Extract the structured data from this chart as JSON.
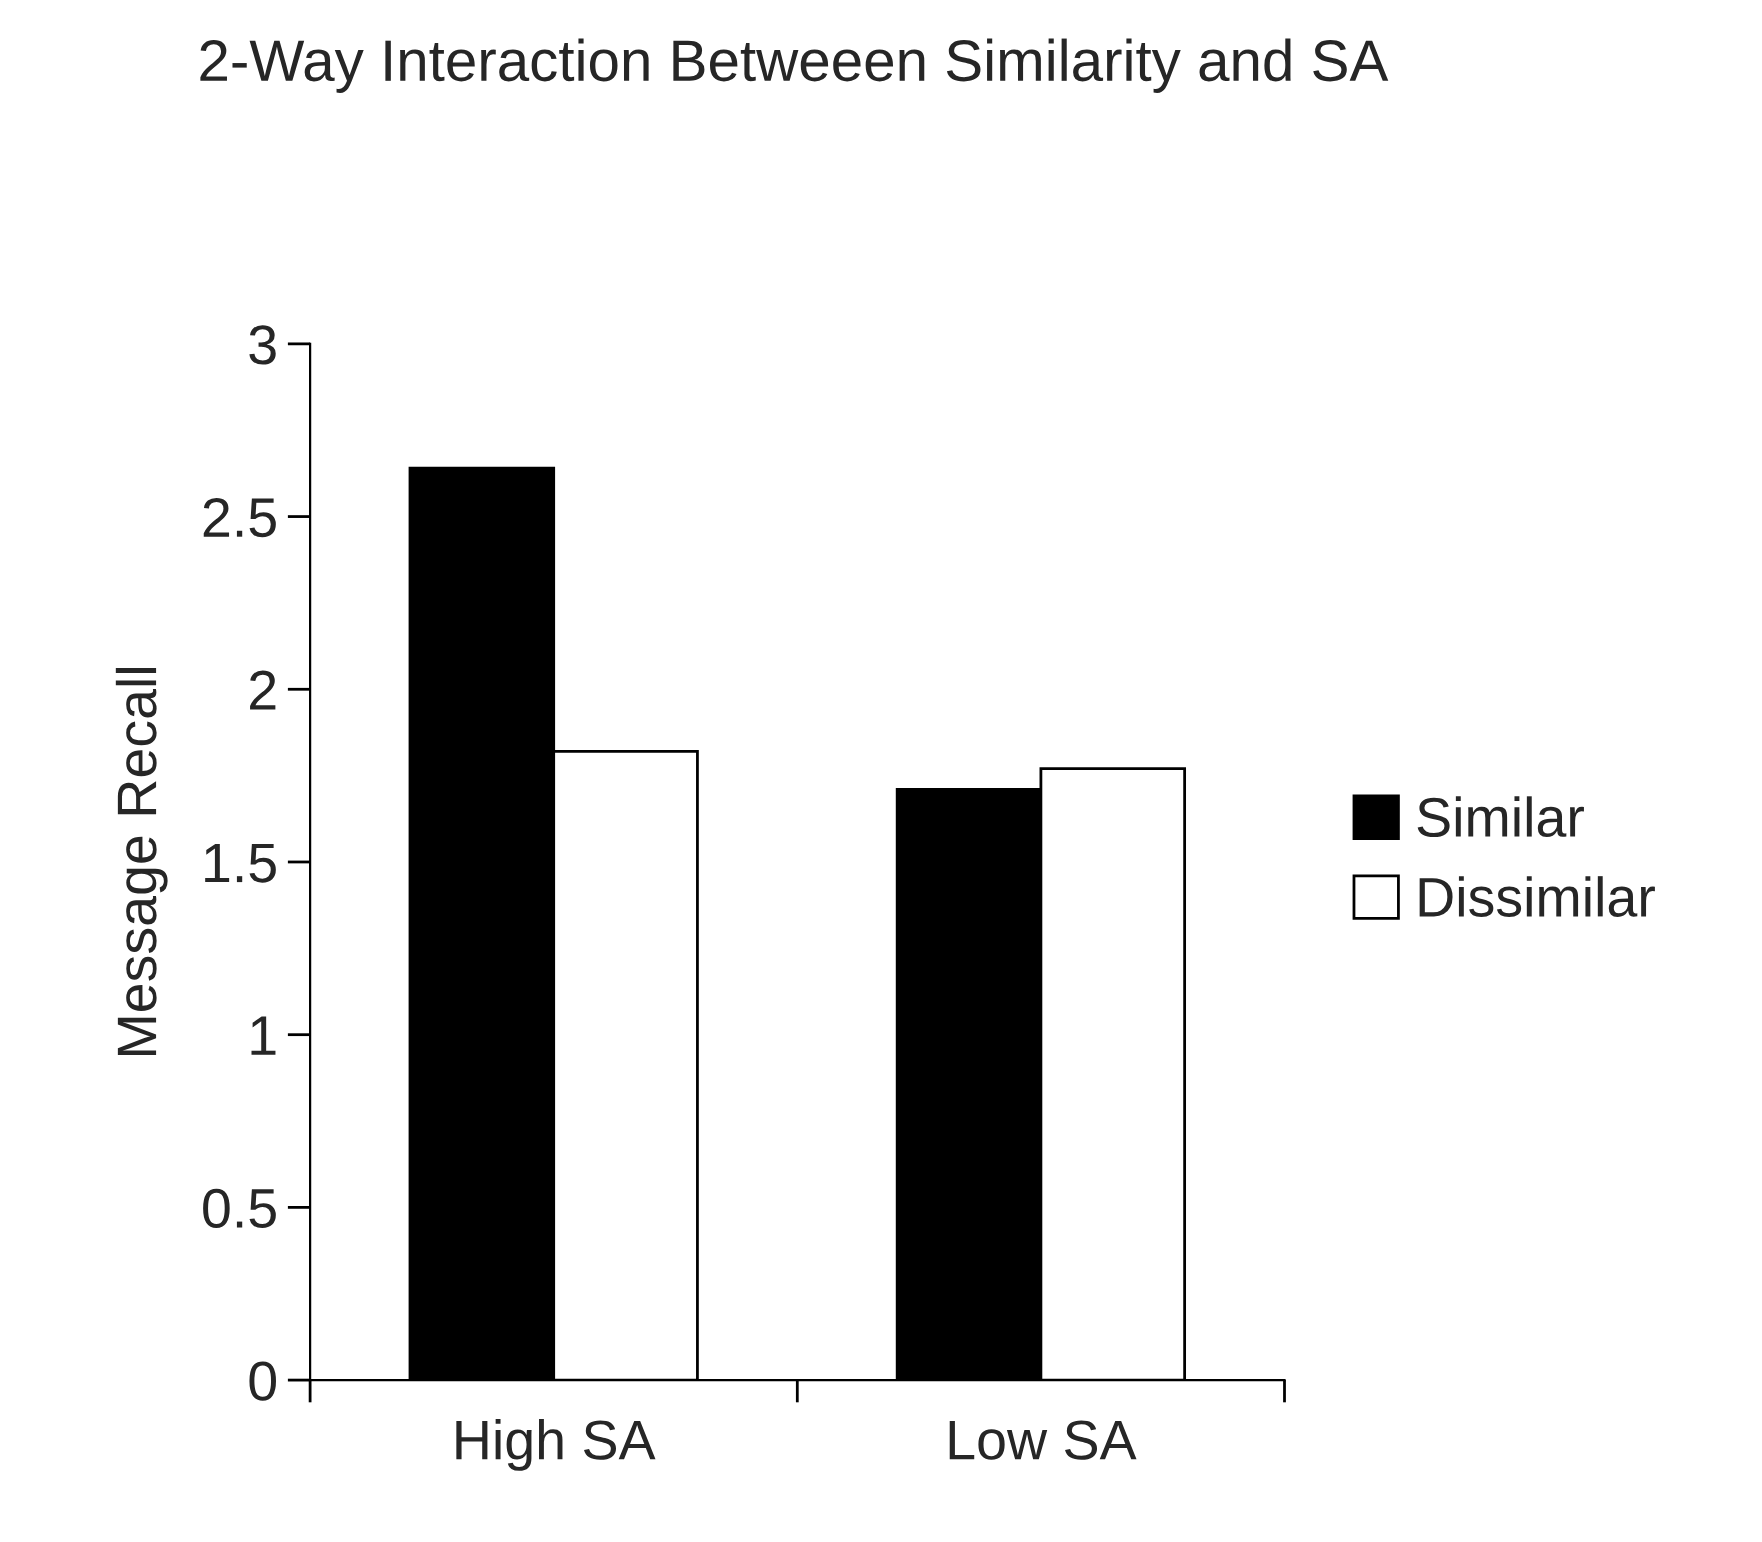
{
  "chart_data": {
    "type": "bar",
    "title": "2-Way Interaction Betweeen Similarity and SA",
    "ylabel": "Message Recall",
    "categories": [
      "High SA",
      "Low SA"
    ],
    "series": [
      {
        "name": "Similar",
        "color": "#000000",
        "values": [
          2.64,
          1.71
        ]
      },
      {
        "name": "Dissimilar",
        "color": "#ffffff",
        "values": [
          1.82,
          1.77
        ]
      }
    ],
    "ylim": [
      0,
      3
    ],
    "yticks": [
      0,
      0.5,
      1,
      1.5,
      2,
      2.5,
      3
    ],
    "grid": false,
    "legend": "right"
  }
}
